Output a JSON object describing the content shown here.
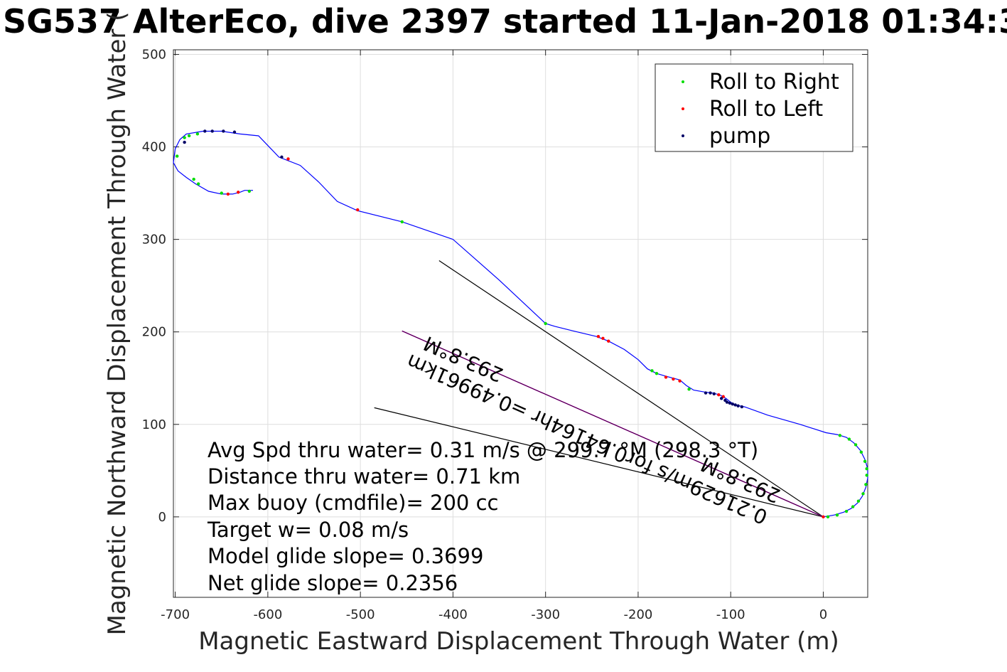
{
  "chart_data": {
    "type": "scatter",
    "title": "SG537 AlterEco, dive 2397 started 11-Jan-2018 01:34:3",
    "xlabel": "Magnetic Eastward Displacement Through Water (m)",
    "ylabel": "Magnetic Northward Displacement Through Water (",
    "xlim": [
      -702,
      48
    ],
    "ylim": [
      -87,
      505
    ],
    "xticks": [
      -700,
      -600,
      -500,
      -400,
      -300,
      -200,
      -100,
      0
    ],
    "yticks": [
      0,
      100,
      200,
      300,
      400,
      500
    ],
    "grid": true,
    "legend_position": "top-right",
    "legend": [
      "Roll to Right",
      "Roll to Left",
      "pump"
    ],
    "colors": {
      "track": "#0000ff",
      "roll_right": "#00dd00",
      "roll_left": "#ff0000",
      "pump": "#000066",
      "current_line": "#b000b0",
      "lines": "#000000"
    },
    "track": [
      [
        0,
        0
      ],
      [
        12,
        2
      ],
      [
        22,
        5
      ],
      [
        30,
        9
      ],
      [
        37,
        15
      ],
      [
        42,
        22
      ],
      [
        46,
        32
      ],
      [
        48,
        42
      ],
      [
        48,
        52
      ],
      [
        45,
        62
      ],
      [
        40,
        72
      ],
      [
        33,
        80
      ],
      [
        25,
        86
      ],
      [
        15,
        89
      ],
      [
        3,
        91
      ],
      [
        -25,
        100
      ],
      [
        -60,
        110
      ],
      [
        -85,
        119
      ],
      [
        -95,
        121
      ],
      [
        -100,
        124
      ],
      [
        -105,
        128
      ],
      [
        -112,
        132
      ],
      [
        -120,
        134
      ],
      [
        -128,
        135
      ],
      [
        -140,
        137
      ],
      [
        -148,
        142
      ],
      [
        -155,
        148
      ],
      [
        -170,
        152
      ],
      [
        -180,
        155
      ],
      [
        -190,
        160
      ],
      [
        -200,
        170
      ],
      [
        -215,
        181
      ],
      [
        -232,
        190
      ],
      [
        -245,
        195
      ],
      [
        -270,
        201
      ],
      [
        -290,
        206
      ],
      [
        -300,
        209
      ],
      [
        -350,
        256
      ],
      [
        -400,
        300
      ],
      [
        -455,
        319
      ],
      [
        -503,
        331
      ],
      [
        -525,
        341
      ],
      [
        -545,
        362
      ],
      [
        -565,
        380
      ],
      [
        -588,
        389
      ],
      [
        -610,
        412
      ],
      [
        -630,
        414
      ],
      [
        -650,
        417
      ],
      [
        -670,
        417
      ],
      [
        -688,
        414
      ],
      [
        -695,
        408
      ],
      [
        -700,
        398
      ],
      [
        -702,
        383
      ],
      [
        -697,
        374
      ],
      [
        -688,
        367
      ],
      [
        -678,
        360
      ],
      [
        -664,
        352
      ],
      [
        -650,
        349
      ],
      [
        -638,
        349
      ],
      [
        -630,
        351
      ],
      [
        -625,
        353
      ],
      [
        -616,
        353
      ]
    ],
    "roll_right": [
      [
        5,
        0
      ],
      [
        15,
        2
      ],
      [
        25,
        6
      ],
      [
        32,
        11
      ],
      [
        38,
        17
      ],
      [
        43,
        25
      ],
      [
        46,
        35
      ],
      [
        47,
        45
      ],
      [
        47,
        52
      ],
      [
        45,
        60
      ],
      [
        41,
        70
      ],
      [
        35,
        78
      ],
      [
        28,
        84
      ],
      [
        18,
        88
      ],
      [
        -300,
        209
      ],
      [
        -455,
        319
      ],
      [
        -180,
        155
      ],
      [
        -185,
        158
      ],
      [
        -145,
        138
      ],
      [
        -698,
        390
      ],
      [
        -690,
        410
      ],
      [
        -685,
        412
      ],
      [
        -676,
        414
      ],
      [
        -675,
        360
      ],
      [
        -680,
        365
      ],
      [
        -650,
        350
      ],
      [
        -620,
        352
      ]
    ],
    "roll_left": [
      [
        0,
        0
      ],
      [
        -113,
        132
      ],
      [
        -108,
        130
      ],
      [
        -170,
        151
      ],
      [
        -162,
        149
      ],
      [
        -155,
        147
      ],
      [
        -243,
        195
      ],
      [
        -238,
        193
      ],
      [
        -232,
        190
      ],
      [
        -578,
        387
      ],
      [
        -503,
        332
      ],
      [
        -643,
        349
      ],
      [
        -632,
        351
      ]
    ],
    "pump": [
      [
        -88,
        119
      ],
      [
        -92,
        120
      ],
      [
        -95,
        121
      ],
      [
        -98,
        122
      ],
      [
        -101,
        123
      ],
      [
        -104,
        124
      ],
      [
        -106,
        126
      ],
      [
        -110,
        128
      ],
      [
        -118,
        133
      ],
      [
        -122,
        134
      ],
      [
        -127,
        134
      ],
      [
        -585,
        389
      ],
      [
        -668,
        417
      ],
      [
        -660,
        417
      ],
      [
        -648,
        417
      ],
      [
        -636,
        416
      ],
      [
        -690,
        405
      ]
    ],
    "current_line": [
      [
        0,
        0
      ],
      [
        -455,
        201
      ]
    ],
    "line_a": [
      [
        0,
        0
      ],
      [
        -415,
        277
      ]
    ],
    "line_b": [
      [
        0,
        0
      ],
      [
        -485,
        118
      ]
    ],
    "annotations": [
      "Avg Spd thru water=  0.31 m/s @ 299.7 °M (298.3 °T)",
      "Distance thru water=  0.71 km",
      "Max buoy (cmdfile)= 200 cc",
      "Target w= 0.08 m/s",
      "Model glide slope= 0.3699",
      "Net glide slope= 0.2356"
    ],
    "rotated_labels": [
      "0.21629m/s for0.64164hr =0.49961km",
      "293.8°M",
      "293.8°M"
    ]
  }
}
